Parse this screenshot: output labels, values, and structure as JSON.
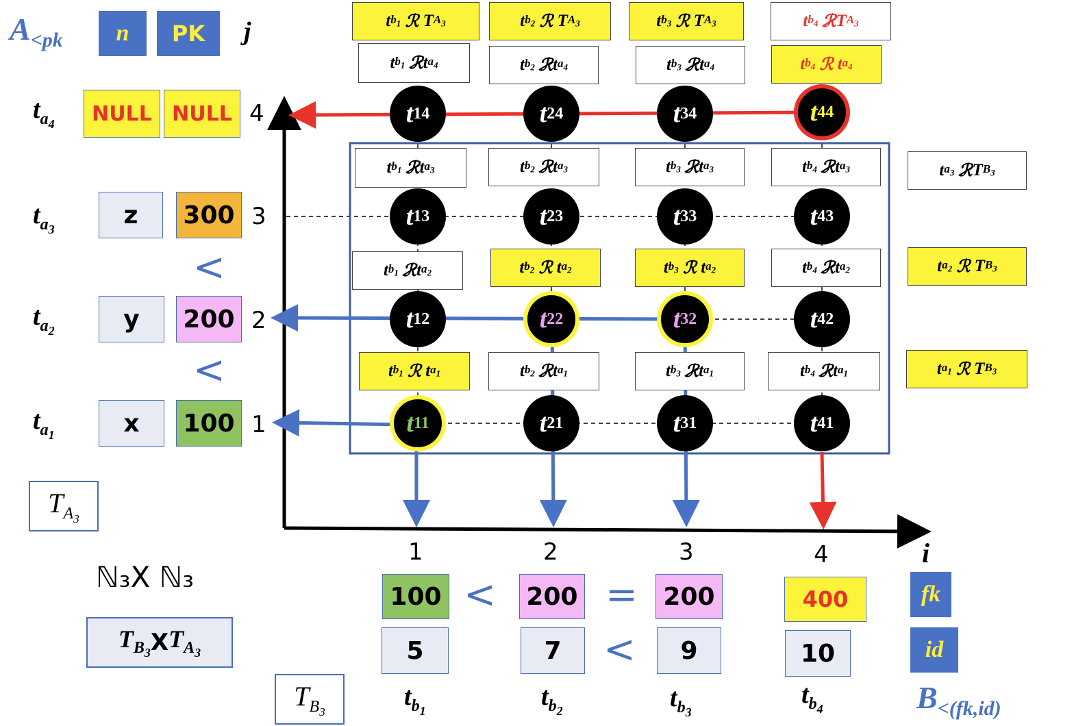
{
  "header": {
    "relation_a": "A",
    "relation_a_sub": "<pk",
    "col_n": "n",
    "col_pk": "PK",
    "col_j": "j",
    "relation_b": "B",
    "relation_b_sub": "<(fk,id)",
    "col_fk": "fk",
    "col_id": "id"
  },
  "rows_a": [
    {
      "tuple": "t",
      "sub1": "a",
      "sub2": "4",
      "n": "NULL",
      "pk": "NULL",
      "j": "4",
      "n_color": "#fcf43a",
      "pk_color": "#fcf43a"
    },
    {
      "tuple": "t",
      "sub1": "a",
      "sub2": "3",
      "n": "z",
      "pk": "300",
      "j": "3",
      "n_color": "#e8eaf4",
      "pk_color": "#f3b53c"
    },
    {
      "tuple": "t",
      "sub1": "a",
      "sub2": "2",
      "n": "y",
      "pk": "200",
      "j": "2",
      "n_color": "#e8eaf4",
      "pk_color": "#f4b8f4"
    },
    {
      "tuple": "t",
      "sub1": "a",
      "sub2": "1",
      "n": "x",
      "pk": "100",
      "j": "1",
      "n_color": "#e8eaf4",
      "pk_color": "#8fc260"
    }
  ],
  "a_less_than": [
    "<",
    "<"
  ],
  "cols_b": [
    {
      "i": "1",
      "fk": "100",
      "id": "5",
      "sub2": "1",
      "fk_color": "#8fc260"
    },
    {
      "i": "2",
      "fk": "200",
      "id": "7",
      "sub2": "2",
      "fk_color": "#f4b8f4"
    },
    {
      "i": "3",
      "fk": "200",
      "id": "9",
      "sub2": "3",
      "fk_color": "#f4b8f4"
    },
    {
      "i": "4",
      "fk": "400",
      "id": "10",
      "sub2": "4",
      "fk_color": "#fcf43a"
    }
  ],
  "b_compare": {
    "fk_1_2": "<",
    "fk_2_3": "=",
    "id_2_3": "<"
  },
  "axis_i": "i",
  "table_a_label": "T",
  "table_a_sub": "A",
  "table_a_subsub": "3",
  "table_b_label": "T",
  "table_b_sub": "B",
  "table_b_subsub": "3",
  "product_sets": "ℕ₃X ℕ₃",
  "product_tables": "X",
  "relation_symbol": "ℛ",
  "nodes": [
    [
      "14",
      "24",
      "34",
      "44"
    ],
    [
      "13",
      "23",
      "33",
      "43"
    ],
    [
      "12",
      "22",
      "32",
      "42"
    ],
    [
      "11",
      "21",
      "31",
      "41"
    ]
  ],
  "colors": {
    "blue": "#4a72c4",
    "yellow": "#fcf43a",
    "red": "#e8322a",
    "frame": "#3d5f9e"
  }
}
